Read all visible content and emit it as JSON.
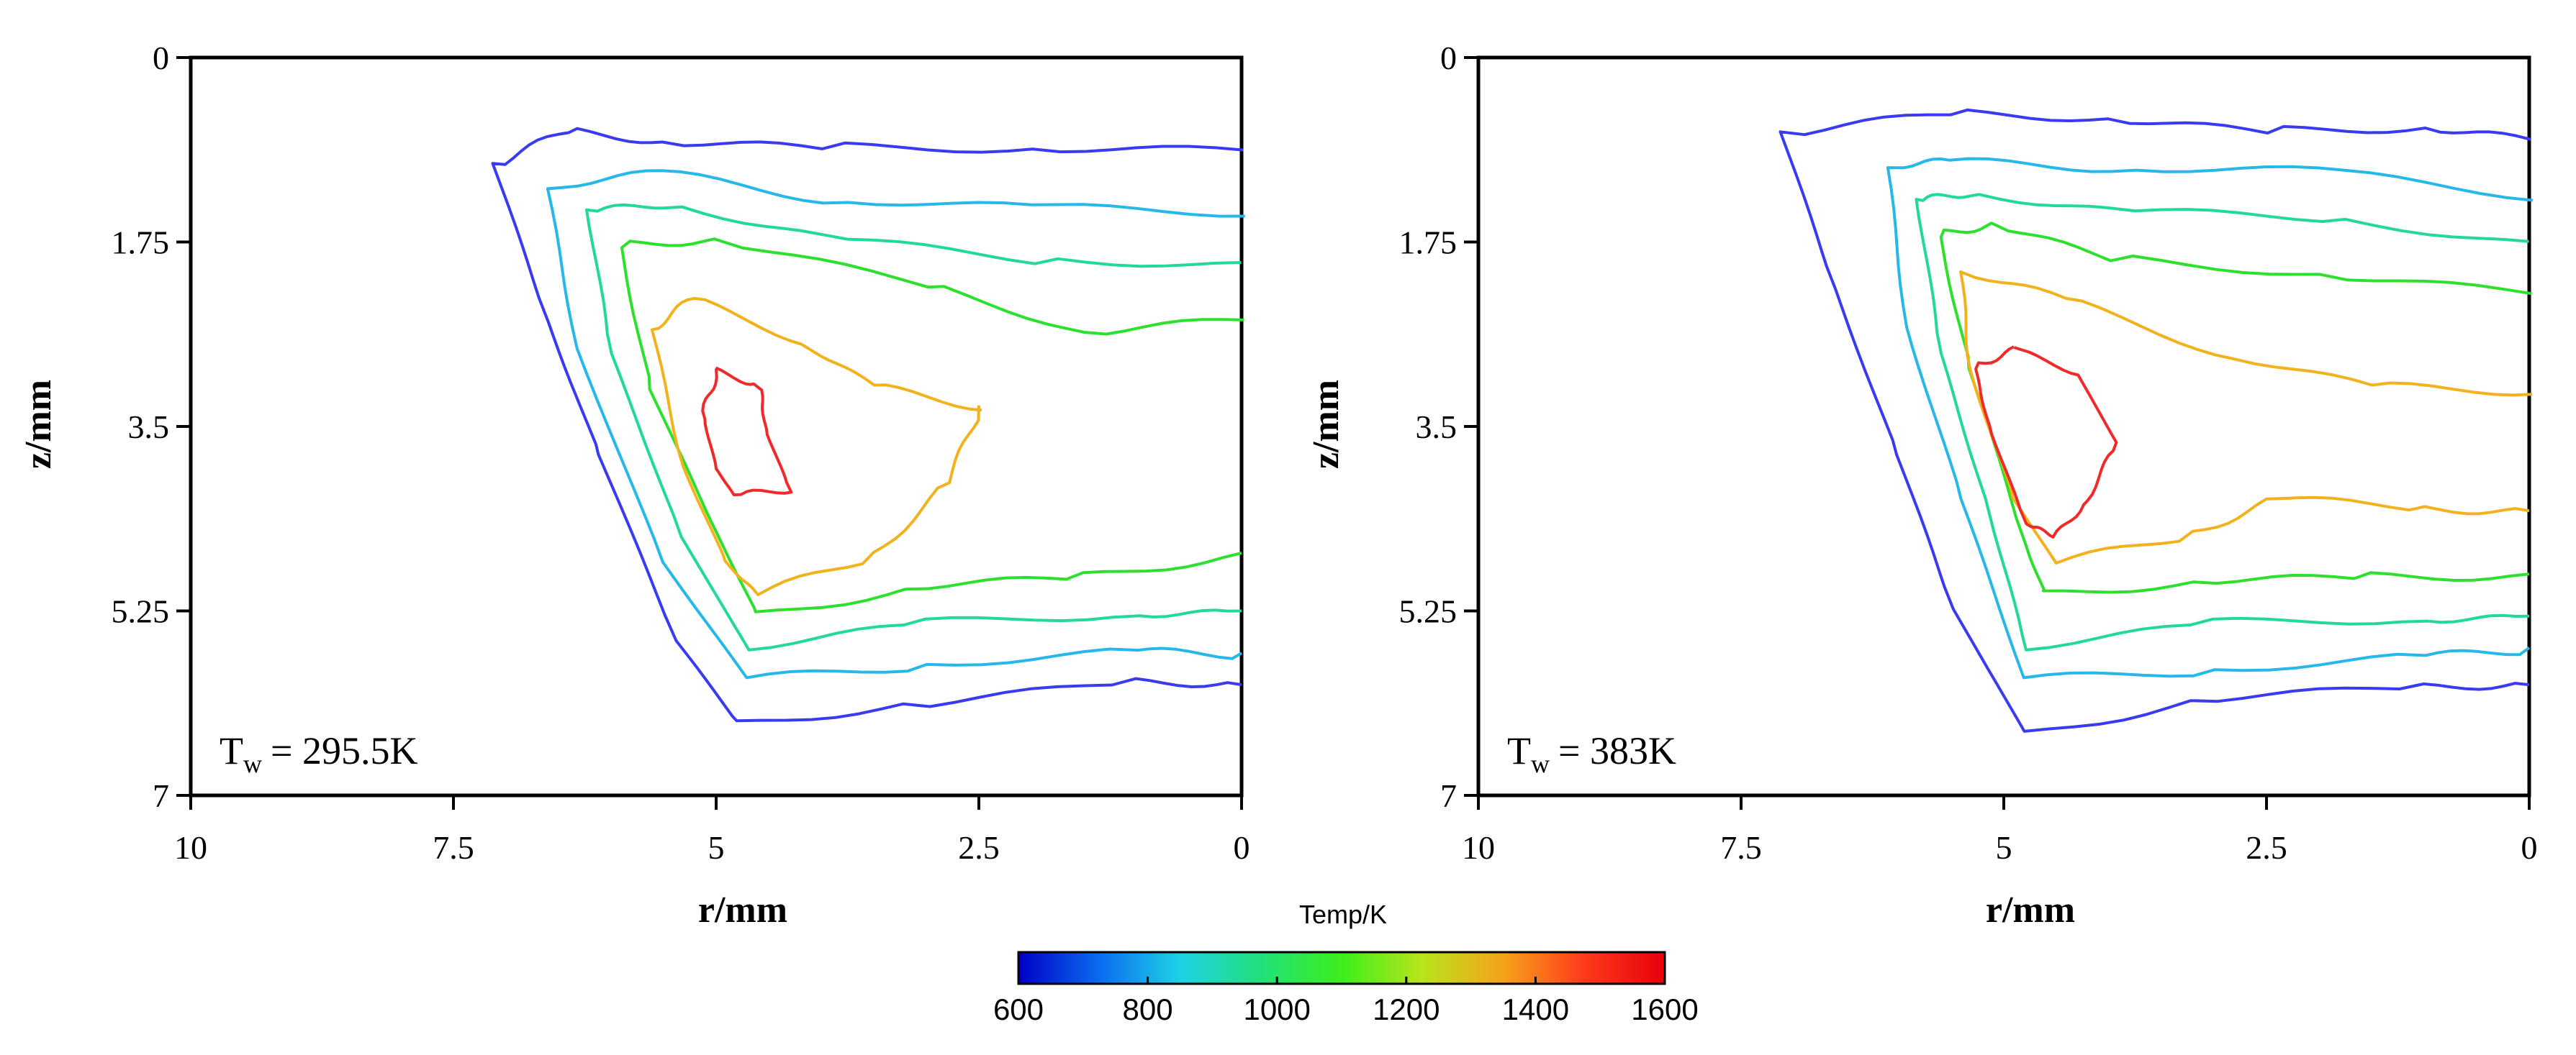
{
  "chart_data": [
    {
      "type": "contour",
      "panel": "left",
      "annotation": {
        "symbol": "T",
        "subscript": "w",
        "value": "= 295.5K"
      },
      "xlabel": "r/mm",
      "ylabel": "z/mm",
      "xlim": [
        10,
        0
      ],
      "ylim": [
        7,
        0
      ],
      "x_ticks": [
        "10",
        "7.5",
        "5",
        "2.5",
        "0"
      ],
      "y_ticks": [
        "0",
        "1.75",
        "3.5",
        "5.25",
        "7"
      ],
      "contour_levels_K": [
        600,
        800,
        1000,
        1200,
        1400,
        1600
      ],
      "contours": [
        {
          "level": 600,
          "color": "#3a3af0",
          "points": [
            [
              0,
              0.85
            ],
            [
              2,
              0.85
            ],
            [
              4,
              0.85
            ],
            [
              5.5,
              0.82
            ],
            [
              6.4,
              0.72
            ],
            [
              7.1,
              1.05
            ],
            [
              6.6,
              2.5
            ],
            [
              6.1,
              3.8
            ],
            [
              5.4,
              5.5
            ],
            [
              4.8,
              6.3
            ],
            [
              3,
              6.1
            ],
            [
              1,
              5.9
            ],
            [
              0,
              5.95
            ]
          ]
        },
        {
          "level": 800,
          "color": "#25b8e8",
          "points": [
            [
              0,
              1.45
            ],
            [
              2,
              1.4
            ],
            [
              4,
              1.35
            ],
            [
              5.5,
              1.1
            ],
            [
              6.6,
              1.25
            ],
            [
              6.3,
              2.8
            ],
            [
              5.5,
              4.8
            ],
            [
              4.7,
              5.9
            ],
            [
              3,
              5.75
            ],
            [
              1,
              5.6
            ],
            [
              0,
              5.65
            ]
          ]
        },
        {
          "level": 1000,
          "color": "#22d89a",
          "points": [
            [
              0,
              1.95
            ],
            [
              2,
              1.9
            ],
            [
              4,
              1.7
            ],
            [
              5.5,
              1.4
            ],
            [
              6.2,
              1.5
            ],
            [
              6.0,
              2.8
            ],
            [
              5.3,
              4.6
            ],
            [
              4.7,
              5.6
            ],
            [
              3,
              5.35
            ],
            [
              1,
              5.25
            ],
            [
              0,
              5.25
            ]
          ]
        },
        {
          "level": 1200,
          "color": "#2ee02e",
          "points": [
            [
              0,
              2.45
            ],
            [
              1.5,
              2.6
            ],
            [
              3,
              2.15
            ],
            [
              5.0,
              1.75
            ],
            [
              5.9,
              1.8
            ],
            [
              5.6,
              3.2
            ],
            [
              5.0,
              4.5
            ],
            [
              4.6,
              5.3
            ],
            [
              3,
              5.0
            ],
            [
              1.5,
              4.9
            ],
            [
              0,
              4.7
            ]
          ]
        },
        {
          "level": 1400,
          "color": "#f2b21e",
          "points": [
            [
              2.5,
              3.3
            ],
            [
              3.5,
              3.1
            ],
            [
              4.2,
              2.7
            ],
            [
              5.2,
              2.3
            ],
            [
              5.6,
              2.6
            ],
            [
              5.3,
              3.9
            ],
            [
              4.9,
              4.8
            ],
            [
              4.6,
              5.1
            ],
            [
              3.5,
              4.7
            ],
            [
              2.8,
              4.0
            ],
            [
              2.5,
              3.3
            ]
          ]
        },
        {
          "level": 1600,
          "color": "#f02a2a",
          "points": [
            [
              5.0,
              2.95
            ],
            [
              4.6,
              3.1
            ],
            [
              4.5,
              3.6
            ],
            [
              4.3,
              4.1
            ],
            [
              4.8,
              4.2
            ],
            [
              5.0,
              3.9
            ],
            [
              5.1,
              3.4
            ],
            [
              5.0,
              2.95
            ]
          ]
        }
      ]
    },
    {
      "type": "contour",
      "panel": "right",
      "annotation": {
        "symbol": "T",
        "subscript": "w",
        "value": "= 383K"
      },
      "xlabel": "r/mm",
      "ylabel": "z/mm",
      "xlim": [
        10,
        0
      ],
      "ylim": [
        7,
        0
      ],
      "x_ticks": [
        "10",
        "7.5",
        "5",
        "2.5",
        "0"
      ],
      "y_ticks": [
        "0",
        "1.75",
        "3.5",
        "5.25",
        "7"
      ],
      "contour_levels_K": [
        600,
        800,
        1000,
        1200,
        1400,
        1600
      ],
      "contours": [
        {
          "level": 600,
          "color": "#3a3af0",
          "points": [
            [
              0,
              0.75
            ],
            [
              1,
              0.65
            ],
            [
              2.5,
              0.7
            ],
            [
              4,
              0.6
            ],
            [
              5.5,
              0.55
            ],
            [
              7.1,
              0.75
            ],
            [
              6.6,
              2.2
            ],
            [
              6.0,
              3.8
            ],
            [
              5.5,
              5.2
            ],
            [
              4.8,
              6.4
            ],
            [
              3,
              6.05
            ],
            [
              1,
              5.95
            ],
            [
              0,
              5.95
            ]
          ]
        },
        {
          "level": 800,
          "color": "#25b8e8",
          "points": [
            [
              0,
              1.3
            ],
            [
              2,
              1.05
            ],
            [
              4,
              1.05
            ],
            [
              5.5,
              1.0
            ],
            [
              6.1,
              1.05
            ],
            [
              5.9,
              2.6
            ],
            [
              5.4,
              4.2
            ],
            [
              4.8,
              5.9
            ],
            [
              3,
              5.8
            ],
            [
              1,
              5.65
            ],
            [
              0,
              5.6
            ]
          ]
        },
        {
          "level": 1000,
          "color": "#22d89a",
          "points": [
            [
              0,
              1.75
            ],
            [
              2,
              1.5
            ],
            [
              4,
              1.45
            ],
            [
              5.4,
              1.3
            ],
            [
              5.8,
              1.4
            ],
            [
              5.6,
              2.8
            ],
            [
              5.1,
              4.4
            ],
            [
              4.8,
              5.6
            ],
            [
              3,
              5.35
            ],
            [
              1,
              5.3
            ],
            [
              0,
              5.3
            ]
          ]
        },
        {
          "level": 1200,
          "color": "#2ee02e",
          "points": [
            [
              0,
              2.2
            ],
            [
              2,
              2.05
            ],
            [
              4,
              1.9
            ],
            [
              5.1,
              1.6
            ],
            [
              5.6,
              1.7
            ],
            [
              5.3,
              3.0
            ],
            [
              4.8,
              4.6
            ],
            [
              4.6,
              5.1
            ],
            [
              3,
              4.95
            ],
            [
              1.5,
              4.9
            ],
            [
              0,
              4.9
            ]
          ]
        },
        {
          "level": 1400,
          "color": "#f2b21e",
          "points": [
            [
              0,
              3.15
            ],
            [
              1.5,
              3.1
            ],
            [
              3,
              2.8
            ],
            [
              4.4,
              2.3
            ],
            [
              5.4,
              2.05
            ],
            [
              5.3,
              3.0
            ],
            [
              4.9,
              4.2
            ],
            [
              4.5,
              4.8
            ],
            [
              3.2,
              4.5
            ],
            [
              2.4,
              4.15
            ],
            [
              1,
              4.25
            ],
            [
              0,
              4.3
            ]
          ]
        },
        {
          "level": 1600,
          "color": "#f02a2a",
          "points": [
            [
              4.9,
              2.75
            ],
            [
              5.3,
              2.9
            ],
            [
              5.1,
              3.6
            ],
            [
              4.8,
              4.4
            ],
            [
              4.5,
              4.6
            ],
            [
              4.2,
              4.2
            ],
            [
              3.9,
              3.7
            ],
            [
              4.3,
              3.0
            ],
            [
              4.9,
              2.75
            ]
          ]
        }
      ]
    }
  ],
  "colorbar": {
    "title": "Temp/K",
    "min": 600,
    "max": 1600,
    "tick_labels": [
      "600",
      "800",
      "1000",
      "1200",
      "1400",
      "1600"
    ],
    "stops": [
      "#0000c8",
      "#0a6cf0",
      "#1ed2e6",
      "#21e07a",
      "#3cee1c",
      "#b8e41a",
      "#f5a21a",
      "#ff3a1a",
      "#e8000a"
    ]
  }
}
